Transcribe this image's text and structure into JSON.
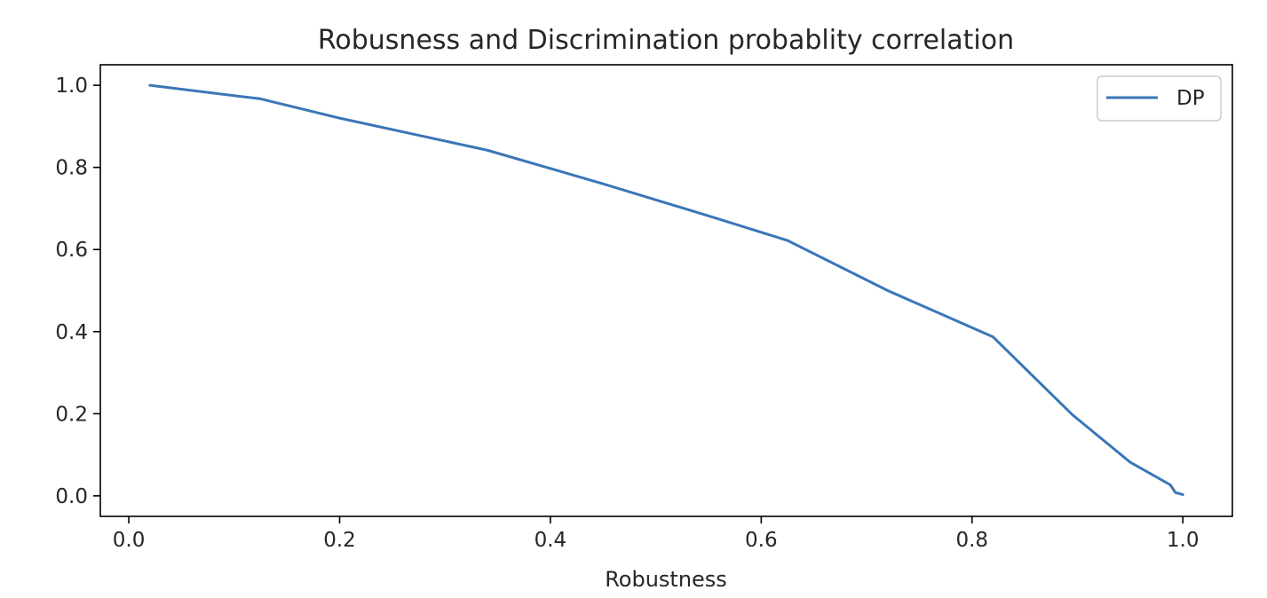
{
  "chart_data": {
    "type": "line",
    "title": "Robusness and Discrimination probablity correlation",
    "xlabel": "Robustness",
    "ylabel": "",
    "xlim": [
      -0.027,
      1.047
    ],
    "ylim": [
      -0.05,
      1.05
    ],
    "xticks": [
      0.0,
      0.2,
      0.4,
      0.6,
      0.8,
      1.0
    ],
    "xtick_labels": [
      "0.0",
      "0.2",
      "0.4",
      "0.6",
      "0.8",
      "1.0"
    ],
    "yticks": [
      0.0,
      0.2,
      0.4,
      0.6,
      0.8,
      1.0
    ],
    "ytick_labels": [
      "0.0",
      "0.2",
      "0.4",
      "0.6",
      "0.8",
      "1.0"
    ],
    "grid": false,
    "legend_position": "upper right",
    "series": [
      {
        "name": "DP",
        "color": "#3a76b8",
        "x": [
          0.02,
          0.125,
          0.2,
          0.34,
          0.45,
          0.55,
          0.625,
          0.72,
          0.82,
          0.895,
          0.95,
          0.988,
          0.993,
          1.0
        ],
        "y": [
          1.0,
          0.967,
          0.92,
          0.842,
          0.76,
          0.682,
          0.622,
          0.5,
          0.387,
          0.198,
          0.082,
          0.027,
          0.008,
          0.003
        ]
      }
    ]
  }
}
